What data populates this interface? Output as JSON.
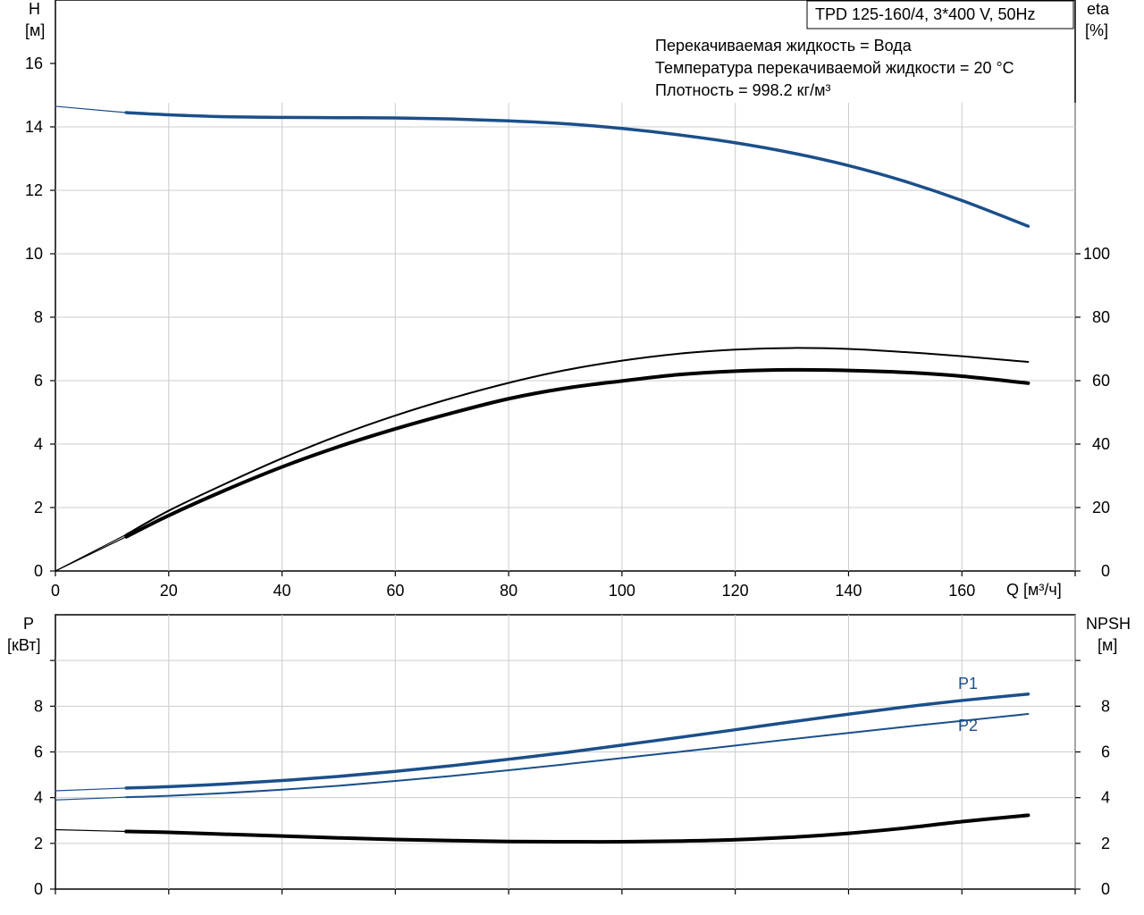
{
  "header": {
    "model": "TPD 125-160/4, 3*400 V, 50Hz",
    "info_lines": [
      "Перекачиваемая жидкость = Вода",
      "Температура перекачиваемой жидкости = 20 °C",
      "Плотность = 998.2 кг/м³"
    ]
  },
  "colors": {
    "blue": "#1b4f8a",
    "black": "#000000",
    "grid": "#cccccc"
  },
  "chart_data": [
    {
      "type": "line",
      "name": "top",
      "xlim": [
        0,
        180
      ],
      "ylim": [
        0,
        18
      ],
      "ylim_right": [
        0,
        180
      ],
      "x_ticks": [
        0,
        20,
        40,
        60,
        80,
        100,
        120,
        140,
        160
      ],
      "x_tick_labels": [
        "0",
        "20",
        "40",
        "60",
        "80",
        "100",
        "120",
        "140",
        "160"
      ],
      "y_ticks": [
        0,
        2,
        4,
        6,
        8,
        10,
        12,
        14,
        16
      ],
      "y_tick_labels": [
        "0",
        "2",
        "4",
        "6",
        "8",
        "10",
        "12",
        "14",
        "16"
      ],
      "y_right_ticks": [
        0,
        20,
        40,
        60,
        80,
        100
      ],
      "y_right_tick_labels": [
        "0",
        "20",
        "40",
        "60",
        "80",
        "100"
      ],
      "y_title": [
        "H",
        "[м]"
      ],
      "y_right_title": [
        "eta",
        "[%]"
      ],
      "x_title": "Q [м³/ч]",
      "grid": true,
      "series": [
        {
          "axis": "left",
          "color": "#1b4f8a",
          "width": 3.5,
          "x": [
            12.5,
            20,
            30,
            40,
            50,
            60,
            70,
            80,
            90,
            100,
            110,
            120,
            130,
            140,
            150,
            160,
            171.7
          ],
          "y": [
            14.45,
            14.38,
            14.32,
            14.3,
            14.29,
            14.28,
            14.25,
            14.19,
            14.1,
            13.95,
            13.75,
            13.5,
            13.18,
            12.78,
            12.28,
            11.68,
            10.87
          ]
        },
        {
          "axis": "left",
          "color": "#1b4f8a",
          "width": 1.2,
          "x": [
            0,
            12.5
          ],
          "y": [
            14.65,
            14.45
          ]
        },
        {
          "axis": "right",
          "color": "#000000",
          "width": 2,
          "x": [
            12.5,
            20,
            30,
            40,
            50,
            60,
            70,
            80,
            90,
            100,
            110,
            120,
            130,
            140,
            150,
            160,
            171.7
          ],
          "y": [
            11.5,
            19,
            27.5,
            35.5,
            42.7,
            49,
            54.5,
            59.3,
            63.3,
            66.3,
            68.5,
            69.8,
            70.3,
            70.0,
            69.0,
            67.7,
            65.9
          ]
        },
        {
          "axis": "right",
          "color": "#000000",
          "width": 4,
          "x": [
            12.5,
            20,
            30,
            40,
            50,
            60,
            70,
            80,
            90,
            100,
            110,
            120,
            130,
            140,
            150,
            160,
            171.7
          ],
          "y": [
            10.8,
            17.5,
            25.5,
            32.8,
            39.2,
            44.8,
            49.8,
            54.3,
            57.6,
            59.9,
            61.9,
            63.0,
            63.4,
            63.2,
            62.6,
            61.4,
            59.2
          ]
        },
        {
          "axis": "right",
          "color": "#000000",
          "width": 1.2,
          "x": [
            0,
            12.5
          ],
          "y": [
            0,
            11.5
          ]
        },
        {
          "axis": "right",
          "color": "#000000",
          "width": 1.2,
          "x": [
            0,
            12.5
          ],
          "y": [
            0,
            10.8
          ]
        }
      ]
    },
    {
      "type": "line",
      "name": "bottom",
      "xlim": [
        0,
        180
      ],
      "ylim": [
        0,
        12
      ],
      "ylim_right": [
        0,
        12
      ],
      "x_ticks": [
        0,
        20,
        40,
        60,
        80,
        100,
        120,
        140,
        160
      ],
      "y_ticks": [
        0,
        2,
        4,
        6,
        8,
        10
      ],
      "y_tick_labels": [
        "0",
        "2",
        "4",
        "6",
        "8",
        ""
      ],
      "y_right_ticks": [
        0,
        2,
        4,
        6,
        8,
        10
      ],
      "y_right_tick_labels": [
        "0",
        "2",
        "4",
        "6",
        "8",
        ""
      ],
      "y_title": [
        "P",
        "[кВт]"
      ],
      "y_right_title": [
        "NPSH",
        "[м]"
      ],
      "grid": true,
      "series": [
        {
          "name": "P1",
          "axis": "left",
          "color": "#1b4f8a",
          "width": 3.5,
          "x": [
            12.5,
            20,
            30,
            40,
            50,
            60,
            70,
            80,
            90,
            100,
            110,
            120,
            130,
            140,
            150,
            160,
            171.7
          ],
          "y": [
            4.42,
            4.48,
            4.6,
            4.75,
            4.93,
            5.15,
            5.4,
            5.68,
            5.97,
            6.3,
            6.63,
            6.97,
            7.32,
            7.65,
            7.97,
            8.25,
            8.53
          ]
        },
        {
          "name": "P2",
          "axis": "left",
          "color": "#1b4f8a",
          "width": 2,
          "x": [
            12.5,
            20,
            30,
            40,
            50,
            60,
            70,
            80,
            90,
            100,
            110,
            120,
            130,
            140,
            150,
            160,
            171.7
          ],
          "y": [
            4.02,
            4.08,
            4.2,
            4.35,
            4.52,
            4.73,
            4.95,
            5.2,
            5.46,
            5.73,
            6.0,
            6.28,
            6.56,
            6.83,
            7.1,
            7.36,
            7.66
          ]
        },
        {
          "axis": "left",
          "color": "#1b4f8a",
          "width": 1.2,
          "x": [
            0,
            12.5
          ],
          "y": [
            4.3,
            4.42
          ]
        },
        {
          "axis": "left",
          "color": "#1b4f8a",
          "width": 1.2,
          "x": [
            0,
            12.5
          ],
          "y": [
            3.9,
            4.02
          ]
        },
        {
          "axis": "right",
          "color": "#000000",
          "width": 4,
          "x": [
            12.5,
            20,
            30,
            40,
            50,
            60,
            70,
            80,
            90,
            100,
            110,
            120,
            130,
            140,
            150,
            160,
            171.7
          ],
          "y": [
            2.52,
            2.48,
            2.4,
            2.32,
            2.24,
            2.17,
            2.12,
            2.08,
            2.07,
            2.07,
            2.1,
            2.16,
            2.27,
            2.44,
            2.67,
            2.95,
            3.23
          ]
        },
        {
          "axis": "right",
          "color": "#000000",
          "width": 1.2,
          "x": [
            0,
            12.5
          ],
          "y": [
            2.6,
            2.52
          ]
        }
      ],
      "labels": [
        {
          "text": "P1",
          "x": 168,
          "y": 9.0
        },
        {
          "text": "P2",
          "x": 168,
          "y": 6.4
        }
      ]
    }
  ]
}
